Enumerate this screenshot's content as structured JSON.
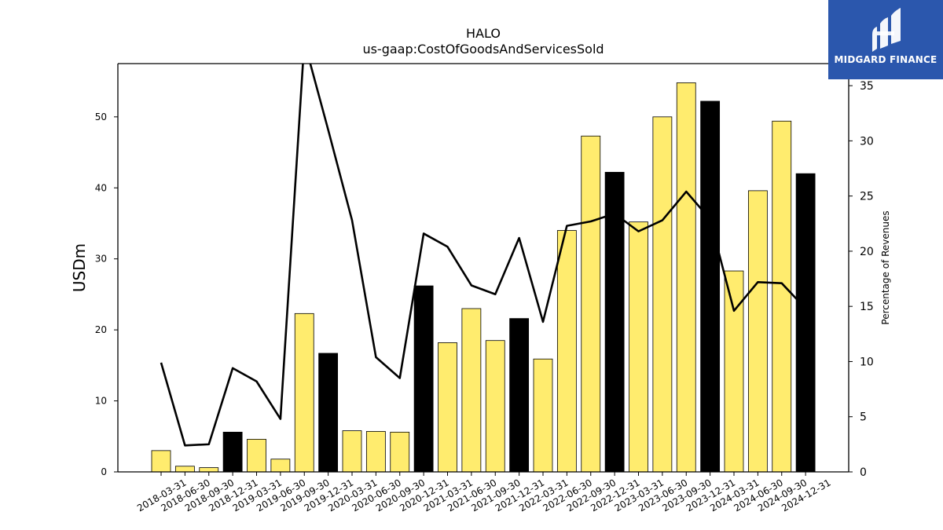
{
  "chart_data": {
    "type": "bar",
    "title": "HALO",
    "subtitle": "us-gaap:CostOfGoodsAndServicesSold",
    "ylabel": "USDm",
    "y2label": "Percentage of Revenues",
    "ylim": [
      0,
      57.5
    ],
    "y2lim": [
      0,
      37
    ],
    "yticks": [
      0,
      10,
      20,
      30,
      40,
      50
    ],
    "y2ticks": [
      0,
      5,
      10,
      15,
      20,
      25,
      30,
      35
    ],
    "categories": [
      "2018-03-31",
      "2018-06-30",
      "2018-09-30",
      "2018-12-31",
      "2019-03-31",
      "2019-06-30",
      "2019-09-30",
      "2019-12-31",
      "2020-03-31",
      "2020-06-30",
      "2020-09-30",
      "2020-12-31",
      "2021-03-31",
      "2021-06-30",
      "2021-09-30",
      "2021-12-31",
      "2022-03-31",
      "2022-06-30",
      "2022-09-30",
      "2022-12-31",
      "2023-03-31",
      "2023-06-30",
      "2023-09-30",
      "2023-12-31",
      "2024-03-31",
      "2024-06-30",
      "2024-09-30",
      "2024-12-31"
    ],
    "series": [
      {
        "type": "bar",
        "axis": "left",
        "values": [
          3.0,
          0.8,
          0.6,
          5.6,
          4.6,
          1.8,
          22.3,
          16.7,
          5.8,
          5.7,
          5.6,
          26.2,
          18.2,
          23.0,
          18.5,
          21.6,
          15.9,
          34.0,
          47.3,
          42.2,
          35.2,
          50.0,
          54.8,
          52.2,
          28.3,
          39.6,
          49.4,
          42.0
        ],
        "colors": [
          "#ffec6e",
          "#ffec6e",
          "#ffec6e",
          "#000000",
          "#ffec6e",
          "#ffec6e",
          "#ffec6e",
          "#000000",
          "#ffec6e",
          "#ffec6e",
          "#ffec6e",
          "#000000",
          "#ffec6e",
          "#ffec6e",
          "#ffec6e",
          "#000000",
          "#ffec6e",
          "#ffec6e",
          "#ffec6e",
          "#000000",
          "#ffec6e",
          "#ffec6e",
          "#ffec6e",
          "#000000",
          "#ffec6e",
          "#ffec6e",
          "#ffec6e",
          "#000000"
        ]
      },
      {
        "type": "line",
        "axis": "right",
        "color": "#000000",
        "values": [
          9.9,
          2.4,
          2.5,
          9.4,
          8.2,
          4.8,
          39.0,
          31.0,
          22.8,
          10.4,
          8.5,
          21.6,
          20.4,
          16.9,
          16.1,
          21.2,
          13.6,
          22.3,
          22.7,
          23.4,
          21.8,
          22.8,
          25.4,
          22.9,
          14.6,
          17.2,
          17.1,
          14.8
        ]
      }
    ],
    "grid": false,
    "legend": "none"
  },
  "logo": {
    "text": "MIDGARD FINANCE",
    "colors": {
      "background": "#2b57ad",
      "foreground": "#ffffff"
    }
  }
}
